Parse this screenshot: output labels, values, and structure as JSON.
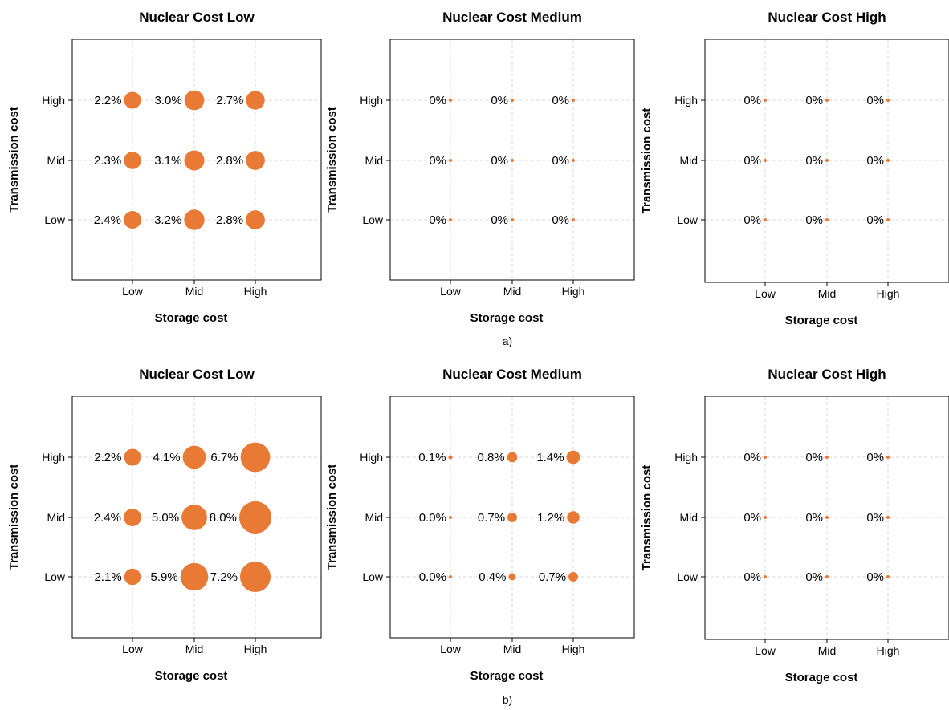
{
  "figure": {
    "captions": [
      "a)",
      "b)"
    ],
    "accent_color": "#E87A36"
  },
  "chart_data": [
    {
      "type": "scatter",
      "title": "Nuclear Cost Low",
      "xlabel": "Storage cost",
      "ylabel": "Transmission cost",
      "x_categories": [
        "Low",
        "Mid",
        "High"
      ],
      "y_categories": [
        "Low",
        "Mid",
        "High"
      ],
      "grid": true,
      "points": [
        {
          "x": "Low",
          "y": "High",
          "value": 2.2,
          "label": "2.2%"
        },
        {
          "x": "Mid",
          "y": "High",
          "value": 3.0,
          "label": "3.0%"
        },
        {
          "x": "High",
          "y": "High",
          "value": 2.7,
          "label": "2.7%"
        },
        {
          "x": "Low",
          "y": "Mid",
          "value": 2.3,
          "label": "2.3%"
        },
        {
          "x": "Mid",
          "y": "Mid",
          "value": 3.1,
          "label": "3.1%"
        },
        {
          "x": "High",
          "y": "Mid",
          "value": 2.8,
          "label": "2.8%"
        },
        {
          "x": "Low",
          "y": "Low",
          "value": 2.4,
          "label": "2.4%"
        },
        {
          "x": "Mid",
          "y": "Low",
          "value": 3.2,
          "label": "3.2%"
        },
        {
          "x": "High",
          "y": "Low",
          "value": 2.8,
          "label": "2.8%"
        }
      ]
    },
    {
      "type": "scatter",
      "title": "Nuclear Cost Medium",
      "xlabel": "Storage cost",
      "ylabel": "Transmission cost",
      "x_categories": [
        "Low",
        "Mid",
        "High"
      ],
      "y_categories": [
        "Low",
        "Mid",
        "High"
      ],
      "grid": true,
      "points": [
        {
          "x": "Low",
          "y": "High",
          "value": 0,
          "label": "0%"
        },
        {
          "x": "Mid",
          "y": "High",
          "value": 0,
          "label": "0%"
        },
        {
          "x": "High",
          "y": "High",
          "value": 0,
          "label": "0%"
        },
        {
          "x": "Low",
          "y": "Mid",
          "value": 0,
          "label": "0%"
        },
        {
          "x": "Mid",
          "y": "Mid",
          "value": 0,
          "label": "0%"
        },
        {
          "x": "High",
          "y": "Mid",
          "value": 0,
          "label": "0%"
        },
        {
          "x": "Low",
          "y": "Low",
          "value": 0,
          "label": "0%"
        },
        {
          "x": "Mid",
          "y": "Low",
          "value": 0,
          "label": "0%"
        },
        {
          "x": "High",
          "y": "Low",
          "value": 0,
          "label": "0%"
        }
      ]
    },
    {
      "type": "scatter",
      "title": "Nuclear Cost High",
      "xlabel": "Storage cost",
      "ylabel": "Transmission cost",
      "x_categories": [
        "Low",
        "Mid",
        "High"
      ],
      "y_categories": [
        "Low",
        "Mid",
        "High"
      ],
      "grid": true,
      "points": [
        {
          "x": "Low",
          "y": "High",
          "value": 0,
          "label": "0%"
        },
        {
          "x": "Mid",
          "y": "High",
          "value": 0,
          "label": "0%"
        },
        {
          "x": "High",
          "y": "High",
          "value": 0,
          "label": "0%"
        },
        {
          "x": "Low",
          "y": "Mid",
          "value": 0,
          "label": "0%"
        },
        {
          "x": "Mid",
          "y": "Mid",
          "value": 0,
          "label": "0%"
        },
        {
          "x": "High",
          "y": "Mid",
          "value": 0,
          "label": "0%"
        },
        {
          "x": "Low",
          "y": "Low",
          "value": 0,
          "label": "0%"
        },
        {
          "x": "Mid",
          "y": "Low",
          "value": 0,
          "label": "0%"
        },
        {
          "x": "High",
          "y": "Low",
          "value": 0,
          "label": "0%"
        }
      ]
    },
    {
      "type": "scatter",
      "title": "Nuclear Cost Low",
      "xlabel": "Storage cost",
      "ylabel": "Transmission cost",
      "x_categories": [
        "Low",
        "Mid",
        "High"
      ],
      "y_categories": [
        "Low",
        "Mid",
        "High"
      ],
      "grid": true,
      "points": [
        {
          "x": "Low",
          "y": "High",
          "value": 2.2,
          "label": "2.2%"
        },
        {
          "x": "Mid",
          "y": "High",
          "value": 4.1,
          "label": "4.1%"
        },
        {
          "x": "High",
          "y": "High",
          "value": 6.7,
          "label": "6.7%"
        },
        {
          "x": "Low",
          "y": "Mid",
          "value": 2.4,
          "label": "2.4%"
        },
        {
          "x": "Mid",
          "y": "Mid",
          "value": 5.0,
          "label": "5.0%"
        },
        {
          "x": "High",
          "y": "Mid",
          "value": 8.0,
          "label": "8.0%"
        },
        {
          "x": "Low",
          "y": "Low",
          "value": 2.1,
          "label": "2.1%"
        },
        {
          "x": "Mid",
          "y": "Low",
          "value": 5.9,
          "label": "5.9%"
        },
        {
          "x": "High",
          "y": "Low",
          "value": 7.2,
          "label": "7.2%"
        }
      ]
    },
    {
      "type": "scatter",
      "title": "Nuclear Cost Medium",
      "xlabel": "Storage cost",
      "ylabel": "Transmission cost",
      "x_categories": [
        "Low",
        "Mid",
        "High"
      ],
      "y_categories": [
        "Low",
        "Mid",
        "High"
      ],
      "grid": true,
      "points": [
        {
          "x": "Low",
          "y": "High",
          "value": 0.1,
          "label": "0.1%"
        },
        {
          "x": "Mid",
          "y": "High",
          "value": 0.8,
          "label": "0.8%"
        },
        {
          "x": "High",
          "y": "High",
          "value": 1.4,
          "label": "1.4%"
        },
        {
          "x": "Low",
          "y": "Mid",
          "value": 0.0,
          "label": "0.0%"
        },
        {
          "x": "Mid",
          "y": "Mid",
          "value": 0.7,
          "label": "0.7%"
        },
        {
          "x": "High",
          "y": "Mid",
          "value": 1.2,
          "label": "1.2%"
        },
        {
          "x": "Low",
          "y": "Low",
          "value": 0.0,
          "label": "0.0%"
        },
        {
          "x": "Mid",
          "y": "Low",
          "value": 0.4,
          "label": "0.4%"
        },
        {
          "x": "High",
          "y": "Low",
          "value": 0.7,
          "label": "0.7%"
        }
      ]
    },
    {
      "type": "scatter",
      "title": "Nuclear Cost High",
      "xlabel": "Storage cost",
      "ylabel": "Transmission cost",
      "x_categories": [
        "Low",
        "Mid",
        "High"
      ],
      "y_categories": [
        "Low",
        "Mid",
        "High"
      ],
      "grid": true,
      "points": [
        {
          "x": "Low",
          "y": "High",
          "value": 0,
          "label": "0%"
        },
        {
          "x": "Mid",
          "y": "High",
          "value": 0,
          "label": "0%"
        },
        {
          "x": "High",
          "y": "High",
          "value": 0,
          "label": "0%"
        },
        {
          "x": "Low",
          "y": "Mid",
          "value": 0,
          "label": "0%"
        },
        {
          "x": "Mid",
          "y": "Mid",
          "value": 0,
          "label": "0%"
        },
        {
          "x": "High",
          "y": "Mid",
          "value": 0,
          "label": "0%"
        },
        {
          "x": "Low",
          "y": "Low",
          "value": 0,
          "label": "0%"
        },
        {
          "x": "Mid",
          "y": "Low",
          "value": 0,
          "label": "0%"
        },
        {
          "x": "High",
          "y": "Low",
          "value": 0,
          "label": "0%"
        }
      ]
    }
  ]
}
